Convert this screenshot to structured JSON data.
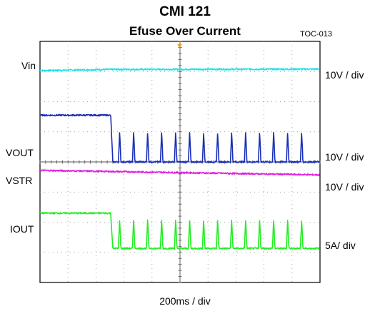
{
  "header": {
    "title": "CMI  121",
    "subtitle": "Efuse Over Current",
    "figure_id": "TOC-013"
  },
  "labels": {
    "vin": "Vin",
    "vout": "VOUT",
    "vstr": "VSTR",
    "iout": "IOUT"
  },
  "scales": {
    "vin": "10V / div",
    "vout": "10V / div",
    "vstr": "10V / div",
    "iout": "5A/ div"
  },
  "xaxis": {
    "label": "200ms / div"
  },
  "chart_data": {
    "type": "line",
    "title": "CMI  121",
    "subtitle": "Efuse Over Current",
    "xlabel": "200ms / div",
    "grid": true,
    "divisions": {
      "x": 10,
      "y": 8
    },
    "x_range_ms": [
      0,
      2000
    ],
    "fault_time_ms": 505,
    "hiccup_pulse_times_ms": [
      560,
      660,
      760,
      860,
      960,
      1060,
      1160,
      1260,
      1360,
      1460,
      1560,
      1660,
      1760,
      1860
    ],
    "series": [
      {
        "name": "Vin",
        "color": "#22e0e8",
        "scale": "10V / div",
        "x_ms": [
          0,
          505,
          2000
        ],
        "y_div": [
          7.03,
          7.07,
          7.08
        ]
      },
      {
        "name": "VOUT",
        "color": "#1a2fb8",
        "scale": "10V / div",
        "x_ms": [
          0,
          505,
          520,
          2000
        ],
        "y_div": [
          5.55,
          5.55,
          4.0,
          4.0
        ],
        "pulse_peak_div": 5.0
      },
      {
        "name": "VSTR",
        "color": "#e020e0",
        "scale": "10V / div",
        "x_ms": [
          0,
          2000
        ],
        "y_div": [
          3.72,
          3.57
        ]
      },
      {
        "name": "IOUT",
        "color": "#22ee22",
        "scale": "5A/ div",
        "x_ms": [
          0,
          505,
          520,
          2000
        ],
        "y_div": [
          2.3,
          2.3,
          1.13,
          1.13
        ],
        "pulse_peak_div": 2.1
      }
    ]
  }
}
